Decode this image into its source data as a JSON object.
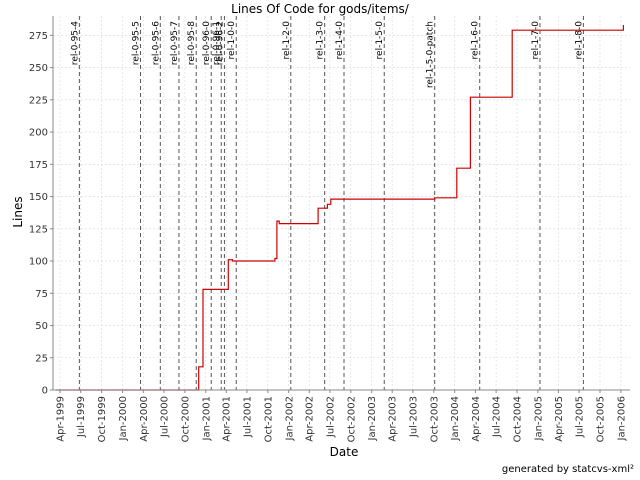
{
  "footer_text": "generated by statcvs-xml²",
  "chart_data": {
    "type": "line",
    "title": "Lines Of Code for gods/items/",
    "xlabel": "Date",
    "ylabel": "Lines",
    "xlim": [
      "1999-03-01",
      "2006-02-10"
    ],
    "ylim": [
      0,
      290
    ],
    "grid": true,
    "line_color": "#cc0000",
    "marker_color": "#555555",
    "y_ticks": [
      0,
      25,
      50,
      75,
      100,
      125,
      150,
      175,
      200,
      225,
      250,
      275
    ],
    "x_ticks": [
      {
        "date": "1999-04-01",
        "label": "Apr-1999"
      },
      {
        "date": "1999-07-01",
        "label": "Jul-1999"
      },
      {
        "date": "1999-10-01",
        "label": "Oct-1999"
      },
      {
        "date": "2000-01-01",
        "label": "Jan-2000"
      },
      {
        "date": "2000-04-01",
        "label": "Apr-2000"
      },
      {
        "date": "2000-07-01",
        "label": "Jul-2000"
      },
      {
        "date": "2000-10-01",
        "label": "Oct-2000"
      },
      {
        "date": "2001-01-01",
        "label": "Jan-2001"
      },
      {
        "date": "2001-04-01",
        "label": "Apr-2001"
      },
      {
        "date": "2001-07-01",
        "label": "Jul-2001"
      },
      {
        "date": "2001-10-01",
        "label": "Oct-2001"
      },
      {
        "date": "2002-01-01",
        "label": "Jan-2002"
      },
      {
        "date": "2002-04-01",
        "label": "Apr-2002"
      },
      {
        "date": "2002-07-01",
        "label": "Jul-2002"
      },
      {
        "date": "2002-10-01",
        "label": "Oct-2002"
      },
      {
        "date": "2003-01-01",
        "label": "Jan-2003"
      },
      {
        "date": "2003-04-01",
        "label": "Apr-2003"
      },
      {
        "date": "2003-07-01",
        "label": "Jul-2003"
      },
      {
        "date": "2003-10-01",
        "label": "Oct-2003"
      },
      {
        "date": "2004-01-01",
        "label": "Jan-2004"
      },
      {
        "date": "2004-04-01",
        "label": "Apr-2004"
      },
      {
        "date": "2004-07-01",
        "label": "Jul-2004"
      },
      {
        "date": "2004-10-01",
        "label": "Oct-2004"
      },
      {
        "date": "2005-01-01",
        "label": "Jan-2005"
      },
      {
        "date": "2005-04-01",
        "label": "Apr-2005"
      },
      {
        "date": "2005-07-01",
        "label": "Jul-2005"
      },
      {
        "date": "2005-10-01",
        "label": "Oct-2005"
      },
      {
        "date": "2006-01-01",
        "label": "Jan-2006"
      }
    ],
    "markers": [
      {
        "date": "1999-06-25",
        "label": "rel-0-95-4"
      },
      {
        "date": "2000-03-20",
        "label": "rel-0-95-5"
      },
      {
        "date": "2000-06-15",
        "label": "rel-0-95-6"
      },
      {
        "date": "2000-09-05",
        "label": "rel-0-95-7"
      },
      {
        "date": "2000-11-20",
        "label": "rel-0-95-8"
      },
      {
        "date": "2001-01-25",
        "label": "rel-0-96-0"
      },
      {
        "date": "2001-03-10",
        "label": "rel-0-96-1"
      },
      {
        "date": "2001-03-24",
        "label": "rel-0-96-2"
      },
      {
        "date": "2001-05-15",
        "label": "rel-1-0-0"
      },
      {
        "date": "2002-01-10",
        "label": "rel-1-2-0"
      },
      {
        "date": "2002-06-08",
        "label": "rel-1-3-0"
      },
      {
        "date": "2002-09-01",
        "label": "rel-1-4-0"
      },
      {
        "date": "2003-02-25",
        "label": "rel-1-5-0"
      },
      {
        "date": "2003-10-05",
        "label": "rel-1-5-0-patch"
      },
      {
        "date": "2004-04-20",
        "label": "rel-1-6-0"
      },
      {
        "date": "2005-01-10",
        "label": "rel-1-7-0"
      },
      {
        "date": "2005-07-20",
        "label": "rel-1-8-0"
      }
    ],
    "series": [
      {
        "points": [
          {
            "x": "1999-03-15",
            "y": 0
          },
          {
            "x": "2000-12-01",
            "y": 0
          },
          {
            "x": "2000-12-01",
            "y": 18
          },
          {
            "x": "2000-12-20",
            "y": 18
          },
          {
            "x": "2000-12-20",
            "y": 78
          },
          {
            "x": "2001-04-10",
            "y": 78
          },
          {
            "x": "2001-04-10",
            "y": 101
          },
          {
            "x": "2001-04-28",
            "y": 101
          },
          {
            "x": "2001-04-28",
            "y": 100
          },
          {
            "x": "2001-11-01",
            "y": 100
          },
          {
            "x": "2001-11-01",
            "y": 102
          },
          {
            "x": "2001-11-10",
            "y": 102
          },
          {
            "x": "2001-11-10",
            "y": 131
          },
          {
            "x": "2001-11-20",
            "y": 131
          },
          {
            "x": "2001-11-20",
            "y": 129
          },
          {
            "x": "2002-05-10",
            "y": 129
          },
          {
            "x": "2002-05-10",
            "y": 141
          },
          {
            "x": "2002-06-20",
            "y": 141
          },
          {
            "x": "2002-06-20",
            "y": 144
          },
          {
            "x": "2002-07-05",
            "y": 144
          },
          {
            "x": "2002-07-05",
            "y": 148
          },
          {
            "x": "2003-10-05",
            "y": 148
          },
          {
            "x": "2003-10-05",
            "y": 149
          },
          {
            "x": "2004-01-10",
            "y": 149
          },
          {
            "x": "2004-01-10",
            "y": 172
          },
          {
            "x": "2004-03-10",
            "y": 172
          },
          {
            "x": "2004-03-10",
            "y": 227
          },
          {
            "x": "2004-09-10",
            "y": 227
          },
          {
            "x": "2004-09-10",
            "y": 279
          },
          {
            "x": "2006-01-12",
            "y": 279
          },
          {
            "x": "2006-01-12",
            "y": 283
          }
        ]
      }
    ]
  }
}
